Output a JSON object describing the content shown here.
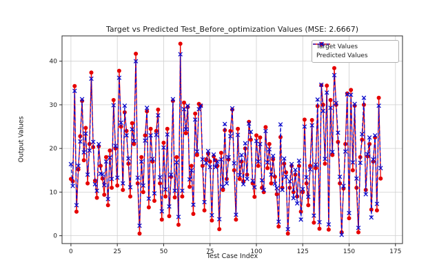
{
  "figure": {
    "background": "#ffffff",
    "mse_label": "MSE: 2.6667"
  },
  "colors": {
    "target": "#e60000",
    "predicted": "#0a0acc",
    "grid": "#cfcfcf",
    "spine": "#2b2b2b",
    "text": "#1a1a1a",
    "legend_border": "#b0b0b0"
  },
  "legend": {
    "position": "upper-right",
    "items": [
      {
        "label": "Target Values",
        "marker": "circle",
        "line": "solid"
      },
      {
        "label": "Predicted Values",
        "marker": "x",
        "line": "dashed"
      }
    ]
  },
  "chart_data": {
    "type": "line",
    "title": "Target vs Predicted Test_Before_optimization Values (MSE: 2.6667)",
    "xlabel": "Test Case Index",
    "ylabel": "Output Values",
    "mse": 2.6667,
    "x_description": "test case index 0..167 (implicit integer x for each value)",
    "xticks": [
      0,
      25,
      50,
      75,
      100,
      125,
      150,
      175
    ],
    "yticks": [
      0,
      10,
      20,
      30,
      40
    ],
    "xlim": [
      -4.8,
      178.8
    ],
    "ylim": [
      -1.8,
      45.8
    ],
    "grid": true,
    "legend_position": "upper right",
    "series": [
      {
        "name": "Target Values",
        "color": "#e60000",
        "line_style": "solid",
        "marker": "circle",
        "values": [
          13,
          12.5,
          34.3,
          5.5,
          15.2,
          22.8,
          30.9,
          17.3,
          24.7,
          12,
          21,
          37.4,
          20.3,
          12.6,
          8.7,
          20.5,
          16,
          13.1,
          9.4,
          18,
          7,
          19.5,
          11,
          31.1,
          20,
          11.5,
          37.8,
          25,
          10.5,
          28.3,
          24,
          16.5,
          9,
          25.8,
          21,
          41.7,
          12,
          0.5,
          18,
          10,
          23,
          28.5,
          6.5,
          24.5,
          17,
          8,
          24,
          28.9,
          12,
          3.7,
          21.3,
          9,
          24.5,
          4.5,
          13.5,
          30.9,
          8.8,
          18,
          2.5,
          44,
          9,
          30.5,
          23.5,
          29.5,
          11.2,
          16,
          5,
          28,
          18.5,
          30.2,
          29.8,
          16,
          5.8,
          17.5,
          18.8,
          17,
          3.5,
          18.2,
          17.3,
          16,
          1.5,
          19,
          10.5,
          24.2,
          13,
          17.5,
          24,
          28.9,
          15,
          3.7,
          24.5,
          13,
          17,
          12.5,
          20,
          14,
          26.1,
          22,
          12,
          8.9,
          23,
          16,
          22.5,
          11,
          10,
          24.9,
          15.5,
          21,
          12,
          17.5,
          13.5,
          9.5,
          2.1,
          22.6,
          11,
          16.5,
          14.5,
          0.5,
          11,
          16,
          10,
          14,
          9,
          16,
          5.5,
          10,
          26.6,
          12,
          7,
          16,
          26.5,
          3,
          15.5,
          29.7,
          1.6,
          34.5,
          30,
          16.5,
          34.4,
          1.4,
          31.1,
          18.5,
          38.4,
          30,
          21.5,
          12,
          0.8,
          10.8,
          21,
          32.6,
          4,
          33.4,
          15,
          29.8,
          11,
          0.8,
          18,
          22,
          30,
          10.5,
          18.2,
          21,
          6,
          17,
          22.5,
          5.8,
          31.6,
          13.1
        ]
      },
      {
        "name": "Predicted Values",
        "color": "#0a0acc",
        "line_style": "dashed",
        "marker": "x",
        "values": [
          16.4,
          11.4,
          33.2,
          7,
          16,
          21.6,
          31.3,
          19.1,
          23.4,
          14,
          19.5,
          36,
          21.5,
          11.8,
          10.3,
          21,
          14.2,
          14.1,
          11.6,
          17,
          8.4,
          17.9,
          13,
          29.9,
          20.6,
          13.3,
          36.2,
          25.9,
          12,
          29.8,
          23,
          17.7,
          11.1,
          24.4,
          21.7,
          40,
          13.3,
          2.3,
          17,
          11.5,
          21.8,
          29.3,
          8.5,
          23,
          17.6,
          9.7,
          23.1,
          27.6,
          13.4,
          5.6,
          20.2,
          10.6,
          23.2,
          6.7,
          14,
          31.3,
          10.3,
          16.8,
          4.3,
          41.6,
          10.3,
          29,
          24.4,
          29.8,
          12.9,
          15,
          7.1,
          26.6,
          19.3,
          29,
          29.8,
          17.5,
          7.7,
          16.7,
          19.4,
          15.7,
          4.7,
          18.6,
          15.7,
          17,
          3.8,
          17.5,
          11.2,
          25.6,
          12,
          18,
          22.8,
          29.2,
          16.6,
          4.8,
          23.1,
          13.9,
          18.5,
          11.8,
          21.2,
          13,
          25.7,
          23.8,
          12.6,
          11.1,
          21.7,
          17,
          21,
          12.7,
          10.5,
          24,
          16.8,
          19.8,
          14,
          18.3,
          11.9,
          10.9,
          3.2,
          25.5,
          10.5,
          17.7,
          13.5,
          1.5,
          12.5,
          16.4,
          8.6,
          15.1,
          7.4,
          17.2,
          3.7,
          10.7,
          25,
          13.4,
          8.9,
          15.2,
          25.3,
          4.6,
          16.3,
          31.2,
          3.1,
          34.6,
          28.6,
          17.6,
          32.8,
          2.6,
          29.3,
          19.2,
          36.8,
          30.4,
          23.6,
          13.5,
          0.2,
          11.4,
          19.3,
          32.4,
          5.2,
          32.3,
          16.8,
          30.2,
          13.1,
          1.8,
          16.7,
          23.3,
          31.6,
          9.5,
          18.7,
          22.5,
          4.2,
          17.5,
          23,
          7.3,
          29.8,
          15.5
        ]
      }
    ]
  }
}
